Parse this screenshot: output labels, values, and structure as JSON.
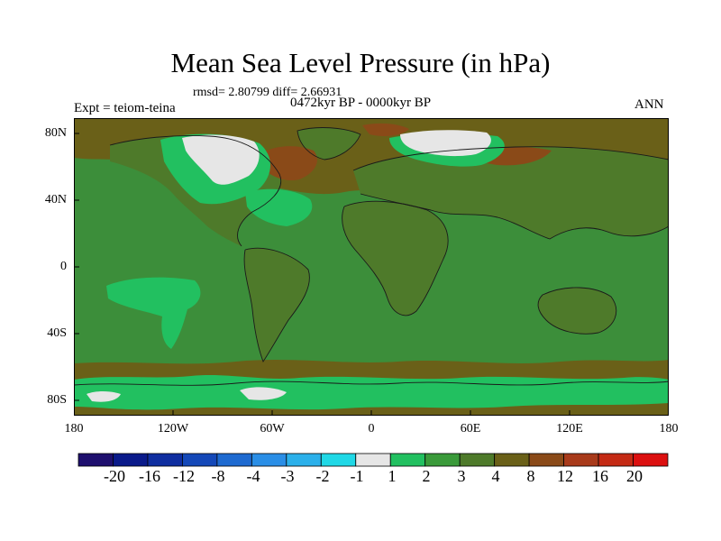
{
  "title": "Mean Sea Level Pressure (in hPa)",
  "stats": "rmsd= 2.80799 diff= 2.66931",
  "period": "0472kyr BP - 0000kyr BP",
  "experiment": "Expt = teiom-teina",
  "season": "ANN",
  "axes": {
    "y_ticks": [
      "80N",
      "40N",
      "0",
      "40S",
      "80S"
    ],
    "x_ticks": [
      "180",
      "120W",
      "60W",
      "0",
      "60E",
      "120E",
      "180"
    ]
  },
  "colorbar": {
    "labels": [
      "-20",
      "-16",
      "-12",
      "-8",
      "-4",
      "-3",
      "-2",
      "-1",
      "1",
      "2",
      "3",
      "4",
      "8",
      "12",
      "16",
      "20"
    ],
    "colors": [
      "#1e0f6e",
      "#0a1a8a",
      "#0f2ea0",
      "#1448b8",
      "#1e6ad0",
      "#2a8ee6",
      "#2bb0ea",
      "#20d8e6",
      "#e6e6e6",
      "#22c060",
      "#3a9a3a",
      "#4e7a2a",
      "#6a6018",
      "#8a4a18",
      "#a83a1a",
      "#c42a14",
      "#dc1010"
    ]
  },
  "colors": {
    "ocean": "#3c8e3a",
    "land_base": "#4e7a2a",
    "high_lat": "#6a6018",
    "strong_high": "#8a4a18",
    "positive_small": "#22c060",
    "near_zero": "#e6e6e6"
  }
}
